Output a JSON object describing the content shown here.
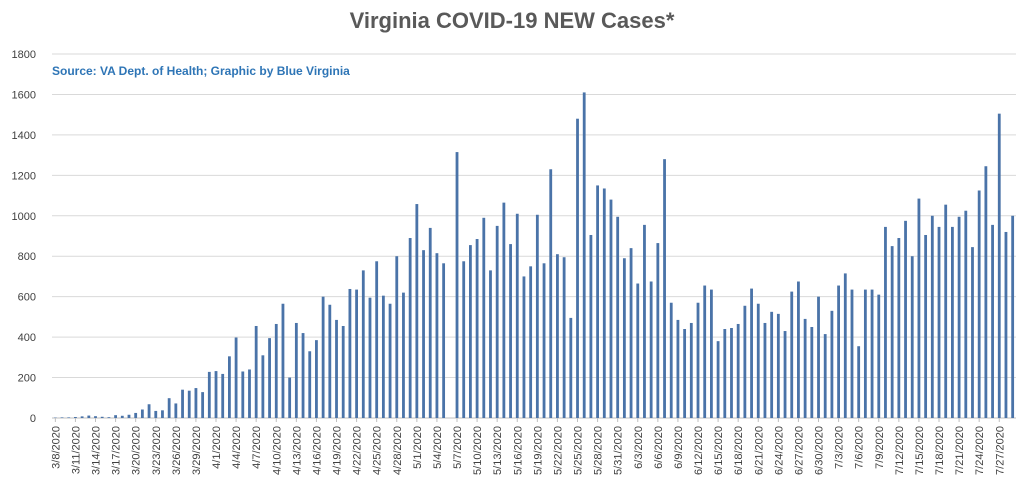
{
  "chart_data": {
    "type": "bar",
    "title": "Virginia COVID-19 NEW Cases*",
    "subtitle": "Source: VA Dept. of Health; Graphic by Blue Virginia",
    "xlabel": "",
    "ylabel": "",
    "ylim": [
      0,
      1800
    ],
    "yticks": [
      0,
      200,
      400,
      600,
      800,
      1000,
      1200,
      1400,
      1600,
      1800
    ],
    "grid": true,
    "bar_color": "#4a73a8",
    "x_tick_labels": [
      "3/8/2020",
      "3/11/2020",
      "3/14/2020",
      "3/17/2020",
      "3/20/2020",
      "3/23/2020",
      "3/26/2020",
      "3/29/2020",
      "4/1/2020",
      "4/4/2020",
      "4/7/2020",
      "4/10/2020",
      "4/13/2020",
      "4/16/2020",
      "4/19/2020",
      "4/22/2020",
      "4/25/2020",
      "4/28/2020",
      "5/1/2020",
      "5/4/2020",
      "5/7/2020",
      "5/10/2020",
      "5/13/2020",
      "5/16/2020",
      "5/19/2020",
      "5/22/2020",
      "5/25/2020",
      "5/28/2020",
      "5/31/2020",
      "6/3/2020",
      "6/6/2020",
      "6/9/2020",
      "6/12/2020",
      "6/15/2020",
      "6/18/2020",
      "6/21/2020",
      "6/24/2020",
      "6/27/2020",
      "6/30/2020",
      "7/3/2020",
      "7/6/2020",
      "7/9/2020",
      "7/12/2020",
      "7/15/2020",
      "7/18/2020",
      "7/21/2020",
      "7/24/2020",
      "7/27/2020"
    ],
    "start_date": "3/8/2020",
    "values": [
      2,
      3,
      3,
      5,
      8,
      12,
      9,
      6,
      4,
      14,
      11,
      16,
      25,
      42,
      68,
      35,
      38,
      98,
      72,
      140,
      135,
      148,
      128,
      228,
      232,
      218,
      305,
      398,
      230,
      240,
      455,
      310,
      395,
      465,
      565,
      200,
      470,
      420,
      330,
      385,
      600,
      560,
      485,
      455,
      638,
      635,
      730,
      595,
      775,
      605,
      565,
      800,
      620,
      890,
      1058,
      830,
      940,
      815,
      765,
      0,
      1315,
      775,
      855,
      885,
      990,
      730,
      950,
      1065,
      860,
      1010,
      700,
      750,
      1005,
      765,
      1230,
      810,
      795,
      495,
      1480,
      1610,
      905,
      1150,
      1135,
      1080,
      995,
      790,
      840,
      665,
      955,
      675,
      865,
      1280,
      570,
      485,
      440,
      470,
      570,
      655,
      635,
      380,
      440,
      445,
      465,
      555,
      640,
      565,
      470,
      525,
      515,
      430,
      625,
      675,
      490,
      450,
      600,
      415,
      530,
      655,
      715,
      635,
      355,
      635,
      635,
      610,
      945,
      850,
      890,
      975,
      800,
      1085,
      905,
      1000,
      945,
      1055,
      945,
      995,
      1025,
      845,
      1125,
      1245,
      955,
      1505,
      920,
      1000
    ]
  }
}
